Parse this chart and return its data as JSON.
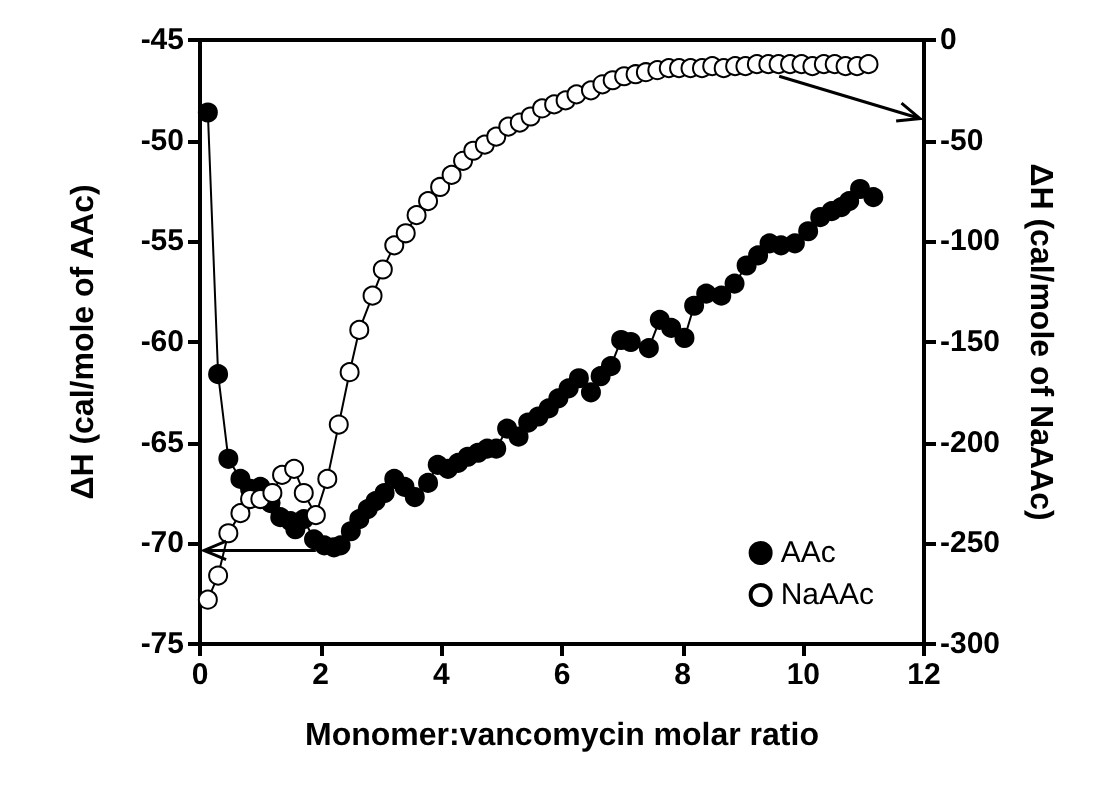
{
  "chart_data": {
    "type": "line",
    "xlabel": "Monomer:vancomycin molar ratio",
    "ylabel": "ΔH (cal/mole of AAc)",
    "y2label": "ΔH (cal/mole of NaAAc)",
    "xlim": [
      0,
      12
    ],
    "xticks": [
      0,
      2,
      4,
      6,
      8,
      10,
      12
    ],
    "ylim": [
      -75,
      -45
    ],
    "yticks": [
      -75,
      -70,
      -65,
      -60,
      -55,
      -50,
      -45
    ],
    "y2lim": [
      -300,
      0
    ],
    "y2ticks": [
      -300,
      -250,
      -200,
      -150,
      -100,
      -50,
      0
    ],
    "grid": false,
    "legend": "bottom right",
    "marker": "circle",
    "line_style": "solid",
    "series": [
      {
        "name": "AAc",
        "color": "#000000",
        "axis": "y",
        "x": [
          0.13,
          0.3,
          0.47,
          0.67,
          0.83,
          1.0,
          1.17,
          1.33,
          1.5,
          1.58,
          1.72,
          1.89,
          2.06,
          2.22,
          2.33,
          2.5,
          2.64,
          2.78,
          2.91,
          3.06,
          3.22,
          3.39,
          3.56,
          3.78,
          3.94,
          4.11,
          4.28,
          4.44,
          4.61,
          4.76,
          4.91,
          5.09,
          5.28,
          5.44,
          5.61,
          5.78,
          5.94,
          6.11,
          6.28,
          6.48,
          6.64,
          6.81,
          6.98,
          7.14,
          7.44,
          7.62,
          7.81,
          8.03,
          8.19,
          8.39,
          8.64,
          8.86,
          9.06,
          9.25,
          9.44,
          9.63,
          9.86,
          10.08,
          10.28,
          10.47,
          10.63,
          10.76,
          10.94,
          11.16
        ],
        "values": [
          -48.6,
          -61.6,
          -65.8,
          -66.8,
          -67.3,
          -67.2,
          -68.0,
          -68.7,
          -68.9,
          -69.3,
          -68.8,
          -69.8,
          -70.1,
          -70.2,
          -70.1,
          -69.4,
          -68.8,
          -68.3,
          -67.9,
          -67.5,
          -66.8,
          -67.2,
          -67.7,
          -67.0,
          -66.1,
          -66.3,
          -66.0,
          -65.7,
          -65.5,
          -65.3,
          -65.3,
          -64.3,
          -64.7,
          -64.0,
          -63.7,
          -63.3,
          -62.8,
          -62.3,
          -61.8,
          -62.5,
          -61.7,
          -61.2,
          -59.9,
          -60.0,
          -60.3,
          -58.9,
          -59.3,
          -59.8,
          -58.2,
          -57.6,
          -57.7,
          -57.1,
          -56.2,
          -55.7,
          -55.1,
          -55.2,
          -55.1,
          -54.5,
          -53.8,
          -53.5,
          -53.3,
          -53.0,
          -52.4,
          -52.8
        ]
      },
      {
        "name": "NaAAc",
        "color": "#ffffff",
        "axis": "y2",
        "x": [
          0.13,
          0.3,
          0.47,
          0.67,
          0.83,
          1.0,
          1.2,
          1.36,
          1.56,
          1.72,
          1.92,
          2.11,
          2.3,
          2.48,
          2.64,
          2.86,
          3.03,
          3.22,
          3.41,
          3.59,
          3.78,
          3.98,
          4.17,
          4.36,
          4.53,
          4.72,
          4.91,
          5.11,
          5.3,
          5.48,
          5.67,
          5.87,
          6.06,
          6.24,
          6.48,
          6.67,
          6.84,
          7.03,
          7.22,
          7.39,
          7.58,
          7.77,
          7.94,
          8.13,
          8.32,
          8.49,
          8.68,
          8.87,
          9.04,
          9.23,
          9.42,
          9.59,
          9.78,
          9.97,
          10.15,
          10.34,
          10.52,
          10.7,
          10.89,
          11.08
        ],
        "values": [
          -278,
          -266,
          -245,
          -235,
          -228,
          -228,
          -225,
          -216,
          -213,
          -225,
          -236,
          -218,
          -191,
          -165,
          -144,
          -127,
          -114,
          -102,
          -96,
          -87,
          -80,
          -73,
          -67,
          -60,
          -55,
          -52,
          -48,
          -43,
          -41,
          -38,
          -34,
          -32,
          -30,
          -27,
          -25,
          -22,
          -20,
          -18,
          -17,
          -16,
          -15,
          -14,
          -14,
          -14,
          -14,
          -13,
          -14,
          -13,
          -13,
          -12,
          -12,
          -12,
          -12,
          -12,
          -13,
          -12,
          -12,
          -13,
          -13,
          -12
        ]
      }
    ]
  }
}
